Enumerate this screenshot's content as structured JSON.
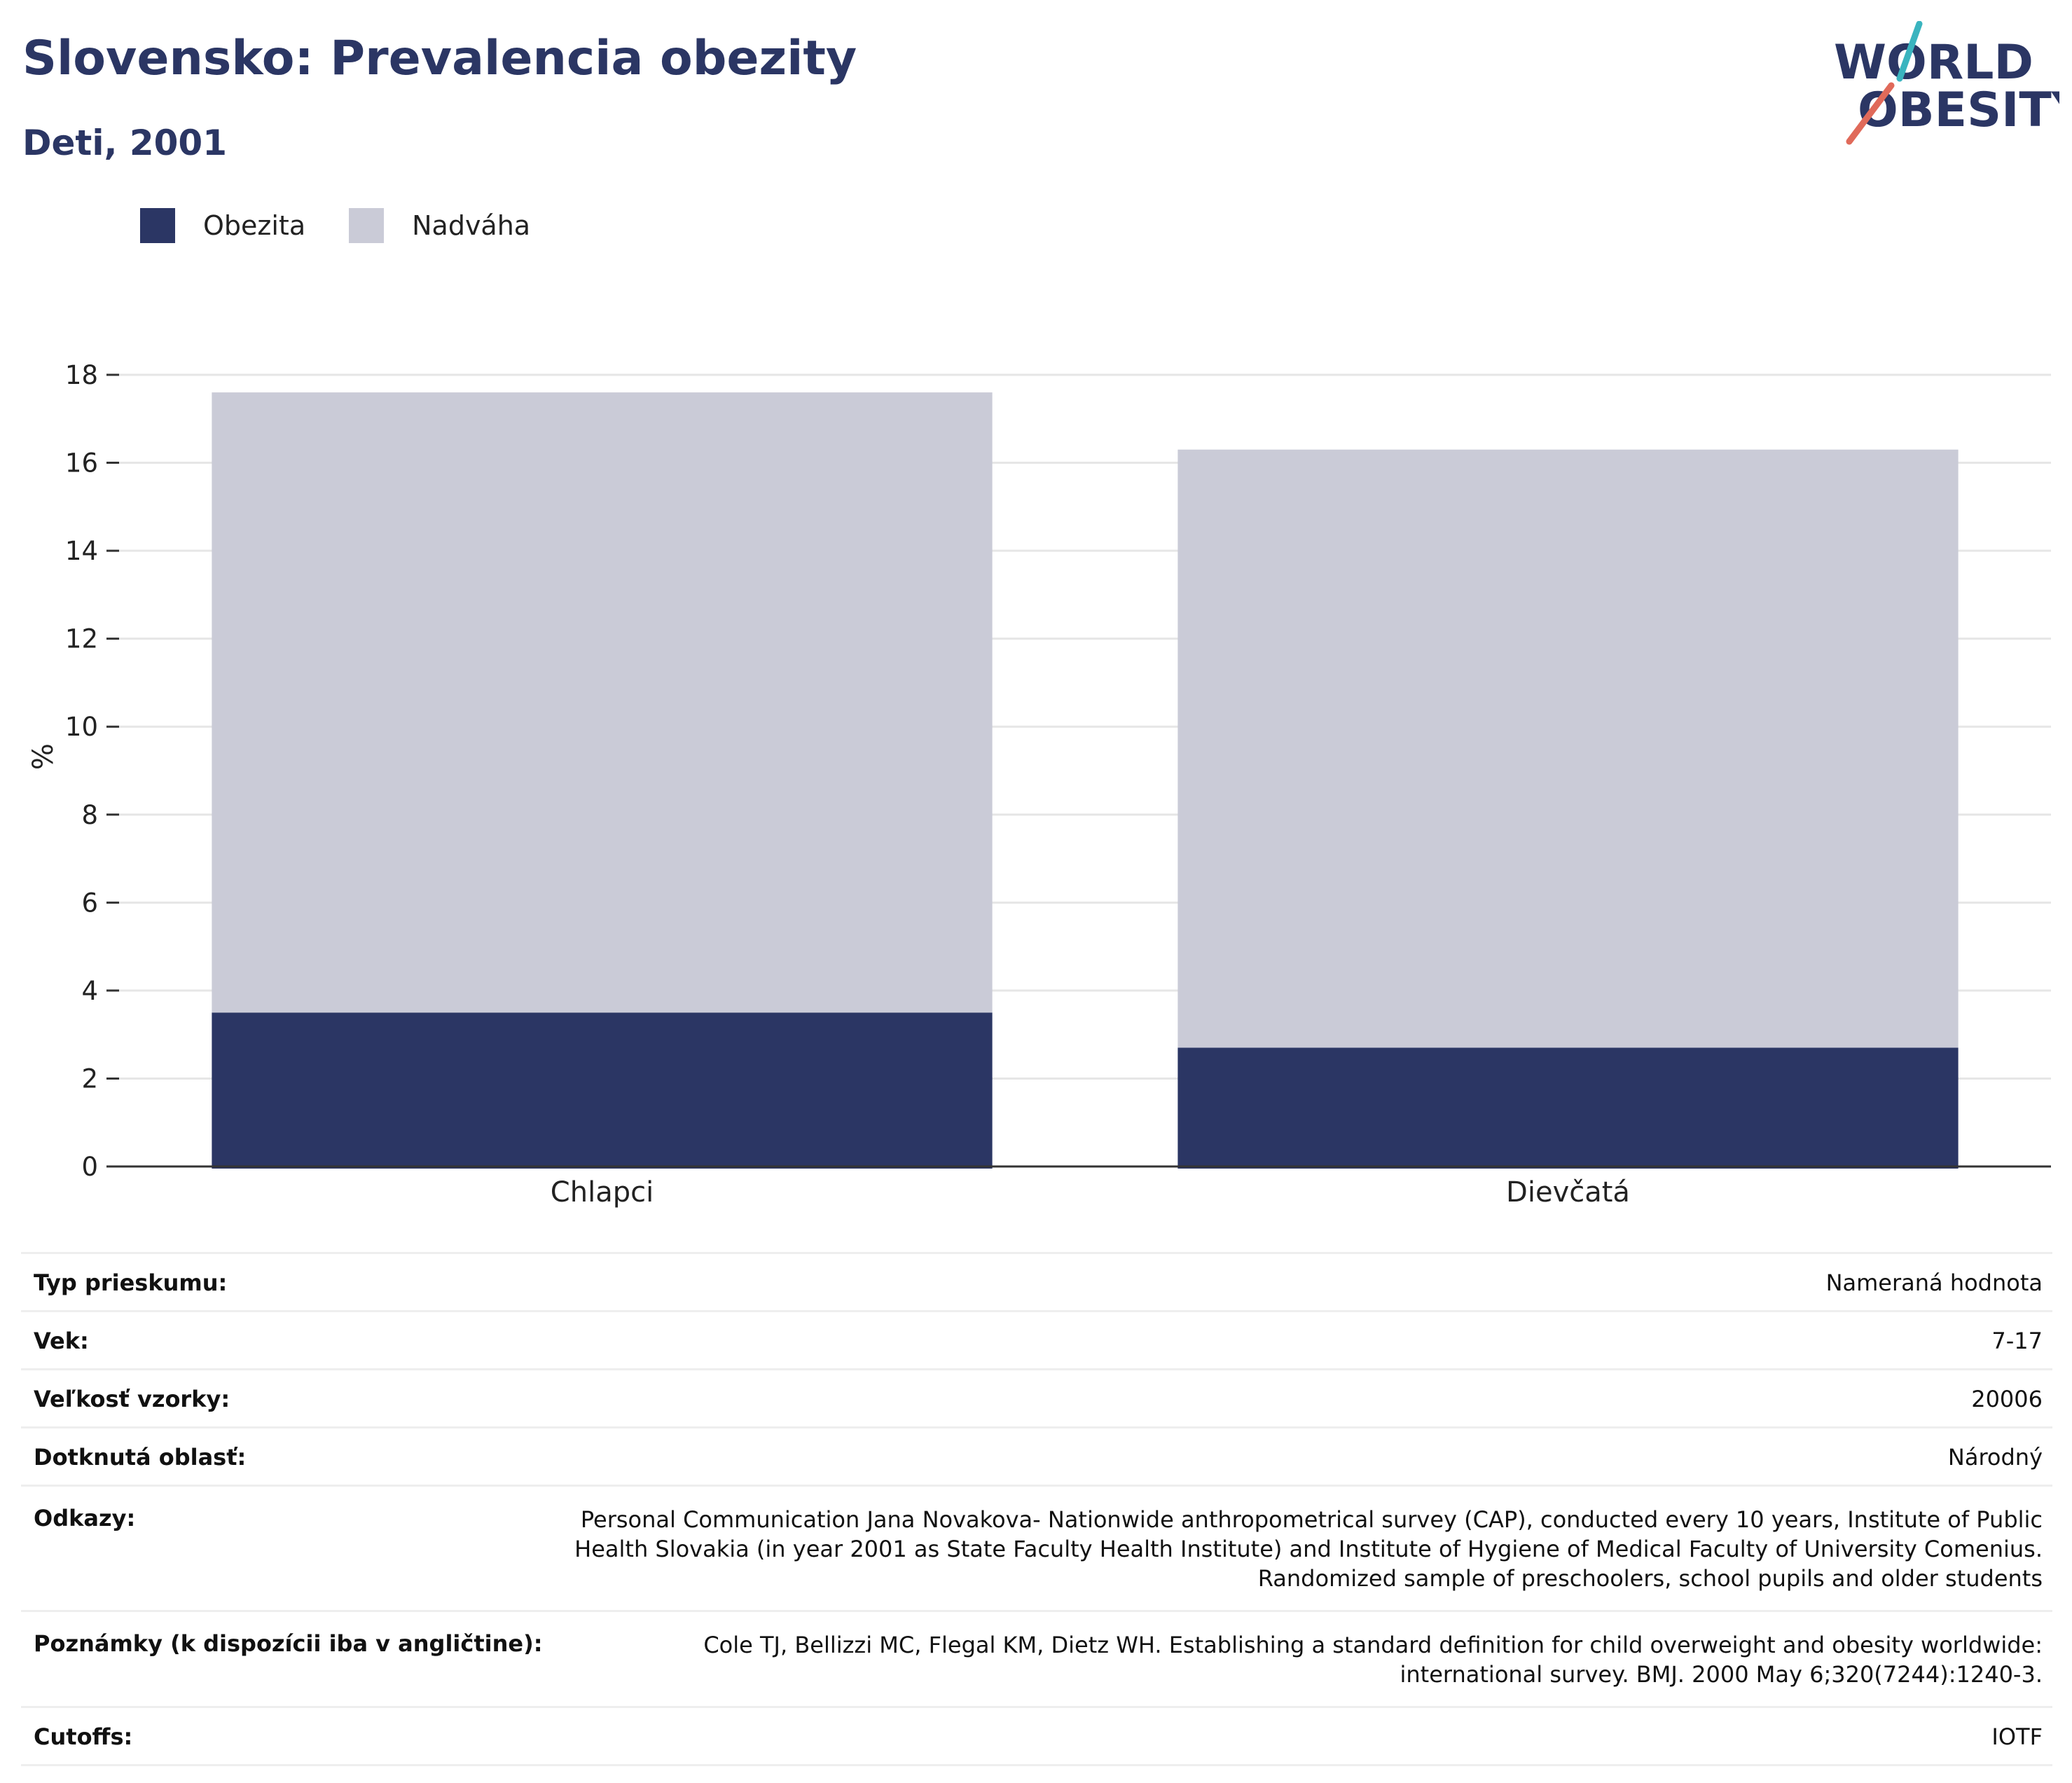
{
  "header": {
    "title": "Slovensko: Prevalencia obezity",
    "subtitle": "Deti, 2001"
  },
  "logo": {
    "line1": "WORLD",
    "line2": "OBESITY",
    "accent_colors": [
      "#3ab4bf",
      "#e06a5a"
    ]
  },
  "legend": {
    "items": [
      {
        "label": "Obezita",
        "color": "#2b3664"
      },
      {
        "label": "Nadváha",
        "color": "#cacbd7"
      }
    ]
  },
  "chart_data": {
    "type": "bar",
    "stacked": true,
    "categories": [
      "Chlapci",
      "Dievčatá"
    ],
    "series": [
      {
        "name": "Obezita",
        "color": "#2b3664",
        "values": [
          3.5,
          2.7
        ]
      },
      {
        "name": "Nadváha",
        "color": "#cacbd7",
        "values": [
          14.1,
          13.6
        ]
      }
    ],
    "ylabel": "%",
    "ylim": [
      0,
      18
    ],
    "yticks": [
      0,
      2,
      4,
      6,
      8,
      10,
      12,
      14,
      16,
      18
    ],
    "grid": true,
    "legend_position": "top-left"
  },
  "info_table": {
    "rows": [
      {
        "label": "Typ prieskumu:",
        "value": "Nameraná hodnota"
      },
      {
        "label": "Vek:",
        "value": "7-17"
      },
      {
        "label": "Veľkosť vzorky:",
        "value": "20006"
      },
      {
        "label": "Dotknutá oblasť:",
        "value": "Národný"
      },
      {
        "label": "Odkazy:",
        "value": "Personal Communication Jana Novakova- Nationwide anthropometrical survey (CAP), conducted every 10 years, Institute of Public Health Slovakia (in year 2001 as State Faculty Health Institute) and Institute of Hygiene of Medical Faculty of University Comenius. Randomized sample of preschoolers, school pupils and older students"
      },
      {
        "label": "Poznámky (k dispozícii iba v angličtine):",
        "value": "Cole TJ, Bellizzi MC, Flegal KM, Dietz WH. Establishing a standard definition for child overweight and obesity worldwide: international survey. BMJ. 2000 May 6;320(7244):1240-3."
      },
      {
        "label": "Cutoffs:",
        "value": "IOTF"
      }
    ]
  }
}
